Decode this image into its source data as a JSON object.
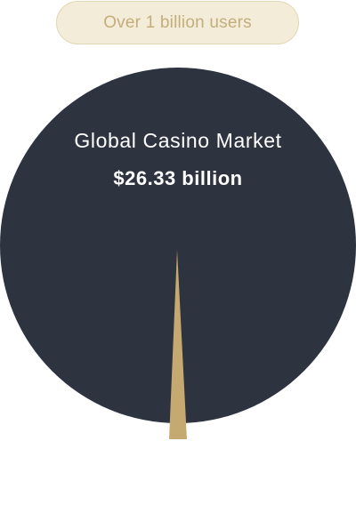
{
  "badge": {
    "label": "Over 1 billion users"
  },
  "market_circle": {
    "title": "Global Casino Market",
    "value": "$26.33 billion"
  },
  "colors": {
    "circle": "#2e3340",
    "needle": "#c6a971",
    "badge_bg": "#f3ecd9",
    "badge_border": "#e3d6b2",
    "badge_text": "#c4ad7a"
  }
}
